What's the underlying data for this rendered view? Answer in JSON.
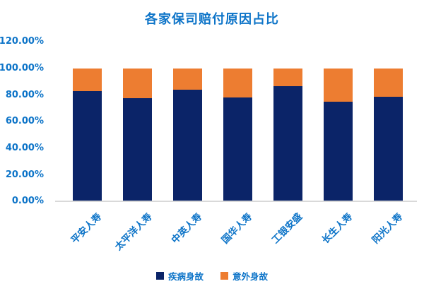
{
  "title": "各家保司赔付原因占比",
  "colors": {
    "title_text": "#0D74C8",
    "axis_text": "#0D74C8",
    "baseline": "#D9D9D9",
    "series_disease": "#0B2468",
    "series_accident": "#ED7D31",
    "background": "#FFFFFF"
  },
  "legend": {
    "disease_label": "疾病身故",
    "accident_label": "意外身故"
  },
  "chart_data": {
    "type": "bar",
    "subtype": "stacked-percent",
    "title": "各家保司赔付原因占比",
    "categories": [
      "平安人寿",
      "太平洋人寿",
      "中英人寿",
      "国华人寿",
      "工银安盛",
      "长生人寿",
      "阳光人寿"
    ],
    "series": [
      {
        "name": "疾病身故",
        "color": "#0B2468",
        "values": [
          83,
          77.5,
          84,
          78,
          86.5,
          75,
          78.5
        ]
      },
      {
        "name": "意外身故",
        "color": "#ED7D31",
        "values": [
          17,
          22.5,
          16,
          22,
          13.5,
          25,
          21.5
        ]
      }
    ],
    "xlabel": "",
    "ylabel": "",
    "ylim": [
      0,
      120
    ],
    "ytick_step": 20,
    "ytick_labels": [
      "120.00%",
      "100.00%",
      "80.00%",
      "60.00%",
      "40.00%",
      "20.00%",
      "0.00%"
    ],
    "grid": false,
    "legend_position": "bottom"
  }
}
